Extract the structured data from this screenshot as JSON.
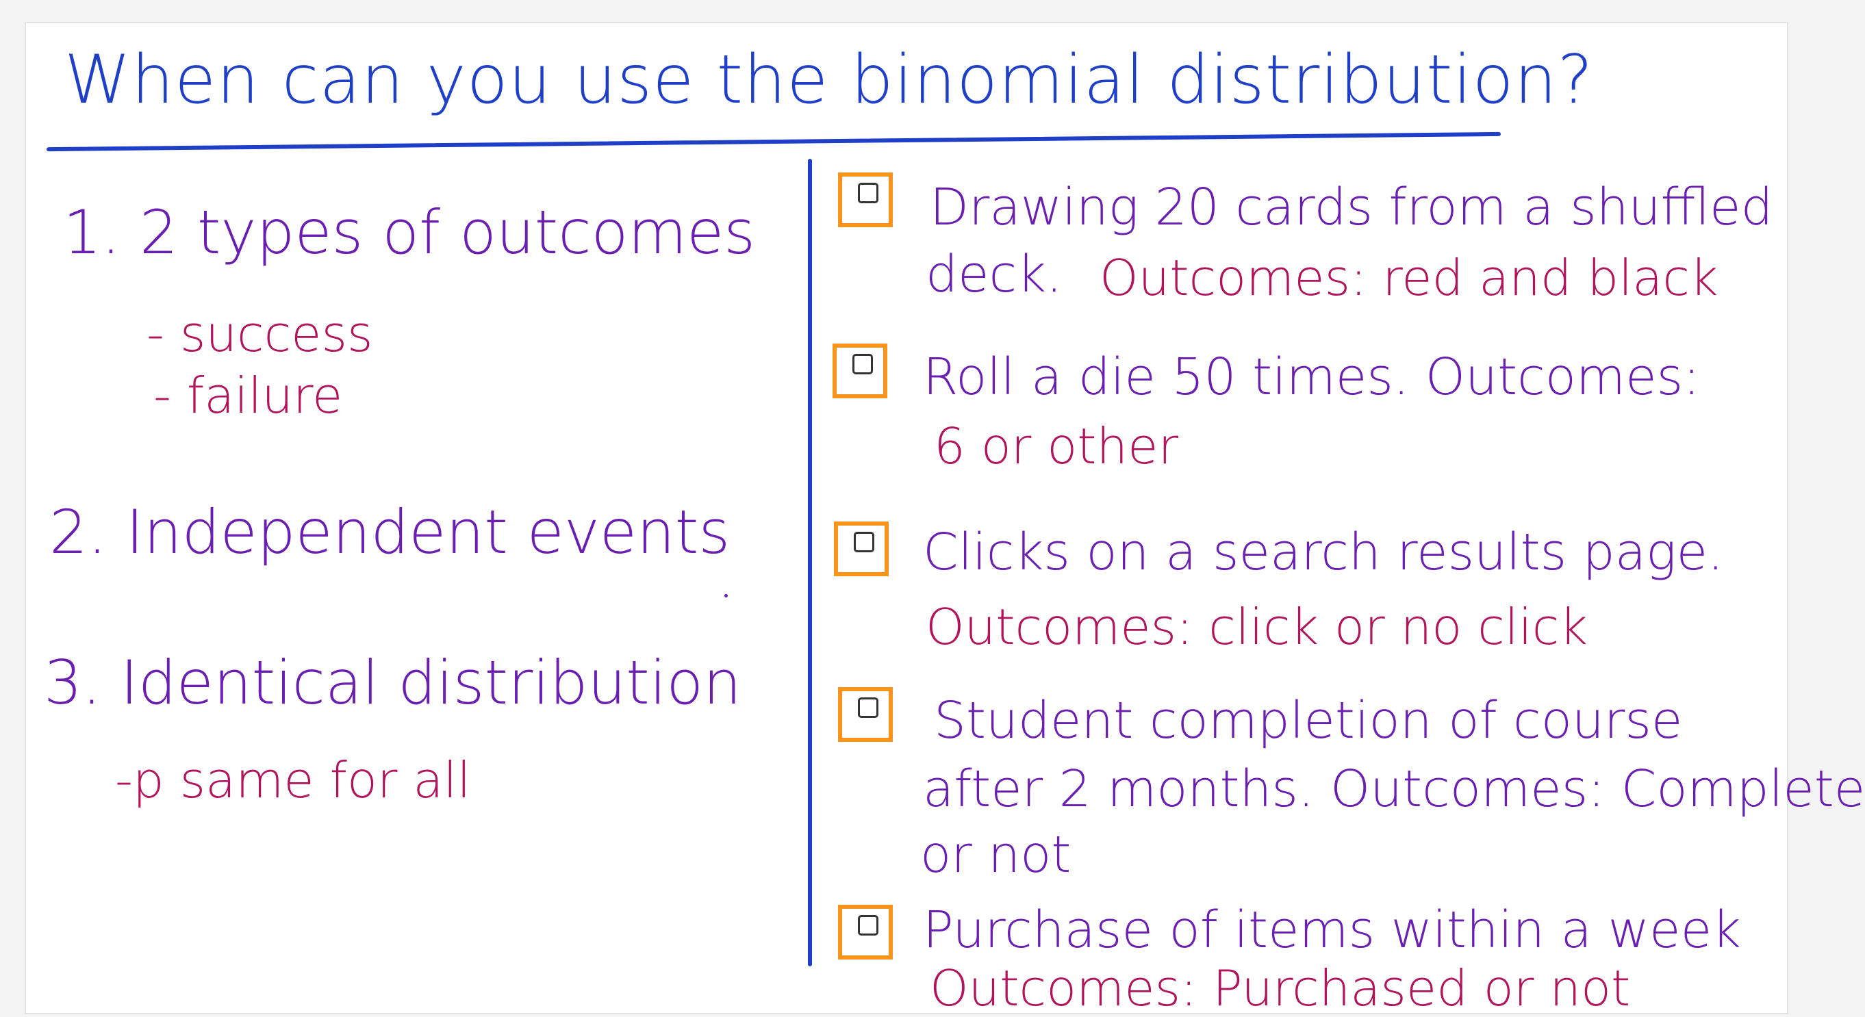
{
  "colors": {
    "title_blue": "#1f3fc7",
    "heading_purple": "#6a1fb0",
    "note_magenta": "#b0145a",
    "checkbox_orange": "#f7941d"
  },
  "title": "When can you use the binomial distribution?",
  "criteria": {
    "c1": "1. 2 types of outcomes",
    "c1_sub1": "- success",
    "c1_sub2": "- failure",
    "c2": "2. Independent events",
    "c3": "3. Identical distribution",
    "c3_sub1": "-p same for all"
  },
  "options": [
    {
      "line1": "Drawing 20 cards from a shuffled",
      "line2a": "deck.",
      "line2b": "Outcomes: red and black",
      "checked": false
    },
    {
      "line1": "Roll a die 50 times. Outcomes:",
      "line2": "6 or other",
      "checked": false
    },
    {
      "line1": "Clicks on a search results page.",
      "line2": "Outcomes: click or no click",
      "checked": false
    },
    {
      "line1": "Student completion of course",
      "line2": "after 2 months. Outcomes: Complete",
      "line3": "or not",
      "checked": false
    },
    {
      "line1": "Purchase of items within a week",
      "line2": "Outcomes: Purchased or not",
      "checked": false
    }
  ]
}
